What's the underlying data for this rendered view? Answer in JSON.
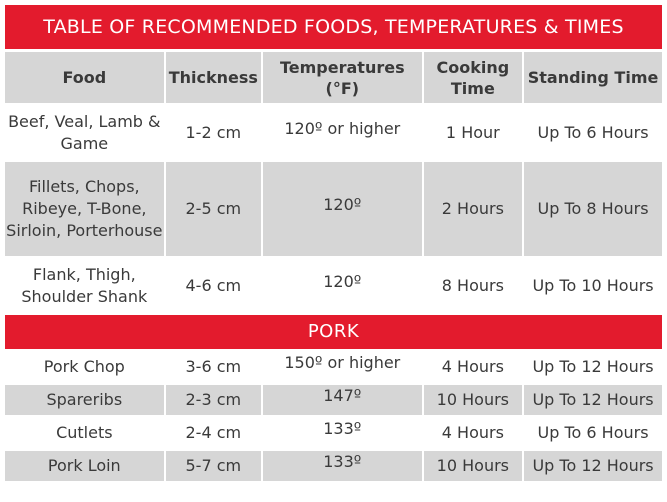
{
  "title": "TABLE OF RECOMMENDED FOODS, TEMPERATURES & TIMES",
  "headers": {
    "food": "Food",
    "thickness": "Thickness",
    "temperatures": "Temperatures (°F)",
    "cooking_time": "Cooking Time",
    "standing_time": "Standing Time"
  },
  "section_pork": "PORK",
  "beef_rows": [
    {
      "food": "Beef, Veal, Lamb & Game",
      "thickness": "1-2 cm",
      "temperature": "120º or higher",
      "cooking": "1 Hour",
      "standing": "Up To 6 Hours"
    },
    {
      "food": "Fillets, Chops, Ribeye, T-Bone, Sirloin, Porterhouse",
      "thickness": "2-5 cm",
      "temperature": "120º",
      "cooking": "2 Hours",
      "standing": "Up To 8 Hours"
    },
    {
      "food": "Flank, Thigh, Shoulder Shank",
      "thickness": "4-6 cm",
      "temperature": "120º",
      "cooking": "8 Hours",
      "standing": "Up To 10 Hours"
    }
  ],
  "pork_rows": [
    {
      "food": "Pork Chop",
      "thickness": "3-6 cm",
      "temperature": "150º or higher",
      "cooking": "4 Hours",
      "standing": "Up To 12 Hours"
    },
    {
      "food": "Spareribs",
      "thickness": "2-3 cm",
      "temperature": "147º",
      "cooking": "10 Hours",
      "standing": "Up To 12 Hours"
    },
    {
      "food": "Cutlets",
      "thickness": "2-4 cm",
      "temperature": "133º",
      "cooking": "4 Hours",
      "standing": "Up To 6 Hours"
    },
    {
      "food": "Pork Loin",
      "thickness": "5-7 cm",
      "temperature": "133º",
      "cooking": "10 Hours",
      "standing": "Up To 12 Hours"
    }
  ],
  "colors": {
    "accent": "#e31b2d",
    "shade": "#d6d6d6",
    "text": "#3a3a3a"
  }
}
